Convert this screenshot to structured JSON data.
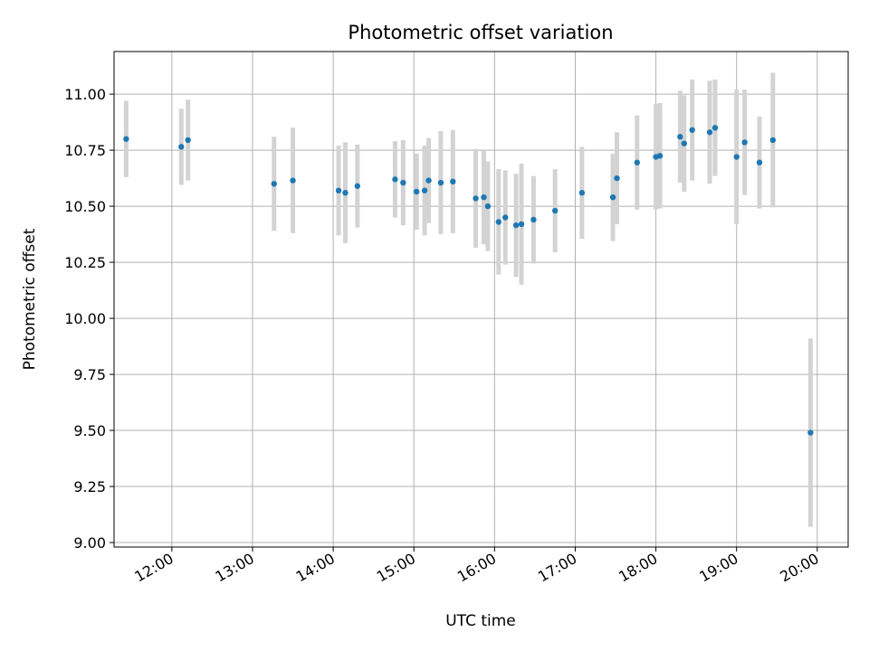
{
  "chart_data": {
    "type": "scatter",
    "title": "Photometric offset variation",
    "xlabel": "UTC time",
    "ylabel": "Photometric offset",
    "xlim": [
      "11:17",
      "20:23"
    ],
    "ylim": [
      8.98,
      11.19
    ],
    "x_ticks": [
      "12:00",
      "13:00",
      "14:00",
      "15:00",
      "16:00",
      "17:00",
      "18:00",
      "19:00",
      "20:00"
    ],
    "y_ticks": [
      "9.00",
      "9.25",
      "9.50",
      "9.75",
      "10.00",
      "10.25",
      "10.50",
      "10.75",
      "11.00"
    ],
    "grid": true,
    "colors": {
      "point": "#1f77b4",
      "errorbar": "#d3d3d3",
      "grid": "#b0b0b0"
    },
    "points": [
      {
        "x": "11:26",
        "y": 10.8,
        "err": 0.17
      },
      {
        "x": "12:07",
        "y": 10.765,
        "err": 0.17
      },
      {
        "x": "12:12",
        "y": 10.795,
        "err": 0.18
      },
      {
        "x": "13:16",
        "y": 10.6,
        "err": 0.21
      },
      {
        "x": "13:30",
        "y": 10.615,
        "err": 0.235
      },
      {
        "x": "14:04",
        "y": 10.57,
        "err": 0.2
      },
      {
        "x": "14:09",
        "y": 10.56,
        "err": 0.225
      },
      {
        "x": "14:18",
        "y": 10.59,
        "err": 0.185
      },
      {
        "x": "14:46",
        "y": 10.62,
        "err": 0.17
      },
      {
        "x": "14:52",
        "y": 10.605,
        "err": 0.19
      },
      {
        "x": "15:02",
        "y": 10.565,
        "err": 0.17
      },
      {
        "x": "15:08",
        "y": 10.57,
        "err": 0.2
      },
      {
        "x": "15:11",
        "y": 10.615,
        "err": 0.19
      },
      {
        "x": "15:20",
        "y": 10.605,
        "err": 0.23
      },
      {
        "x": "15:29",
        "y": 10.61,
        "err": 0.23
      },
      {
        "x": "15:46",
        "y": 10.535,
        "err": 0.22
      },
      {
        "x": "15:52",
        "y": 10.54,
        "err": 0.21
      },
      {
        "x": "15:55",
        "y": 10.5,
        "err": 0.2
      },
      {
        "x": "16:03",
        "y": 10.43,
        "err": 0.235
      },
      {
        "x": "16:08",
        "y": 10.45,
        "err": 0.21
      },
      {
        "x": "16:16",
        "y": 10.415,
        "err": 0.23
      },
      {
        "x": "16:20",
        "y": 10.42,
        "err": 0.27
      },
      {
        "x": "16:29",
        "y": 10.44,
        "err": 0.195
      },
      {
        "x": "16:45",
        "y": 10.48,
        "err": 0.185
      },
      {
        "x": "17:05",
        "y": 10.56,
        "err": 0.205
      },
      {
        "x": "17:28",
        "y": 10.54,
        "err": 0.195
      },
      {
        "x": "17:31",
        "y": 10.625,
        "err": 0.205
      },
      {
        "x": "17:46",
        "y": 10.695,
        "err": 0.21
      },
      {
        "x": "18:00",
        "y": 10.72,
        "err": 0.235
      },
      {
        "x": "18:03",
        "y": 10.725,
        "err": 0.235
      },
      {
        "x": "18:18",
        "y": 10.81,
        "err": 0.205
      },
      {
        "x": "18:21",
        "y": 10.78,
        "err": 0.215
      },
      {
        "x": "18:27",
        "y": 10.84,
        "err": 0.225
      },
      {
        "x": "18:40",
        "y": 10.83,
        "err": 0.23
      },
      {
        "x": "18:44",
        "y": 10.85,
        "err": 0.215
      },
      {
        "x": "19:00",
        "y": 10.72,
        "err": 0.3
      },
      {
        "x": "19:06",
        "y": 10.785,
        "err": 0.235
      },
      {
        "x": "19:17",
        "y": 10.695,
        "err": 0.205
      },
      {
        "x": "19:27",
        "y": 10.795,
        "err": 0.3
      },
      {
        "x": "19:55",
        "y": 9.49,
        "err": 0.42
      }
    ]
  }
}
